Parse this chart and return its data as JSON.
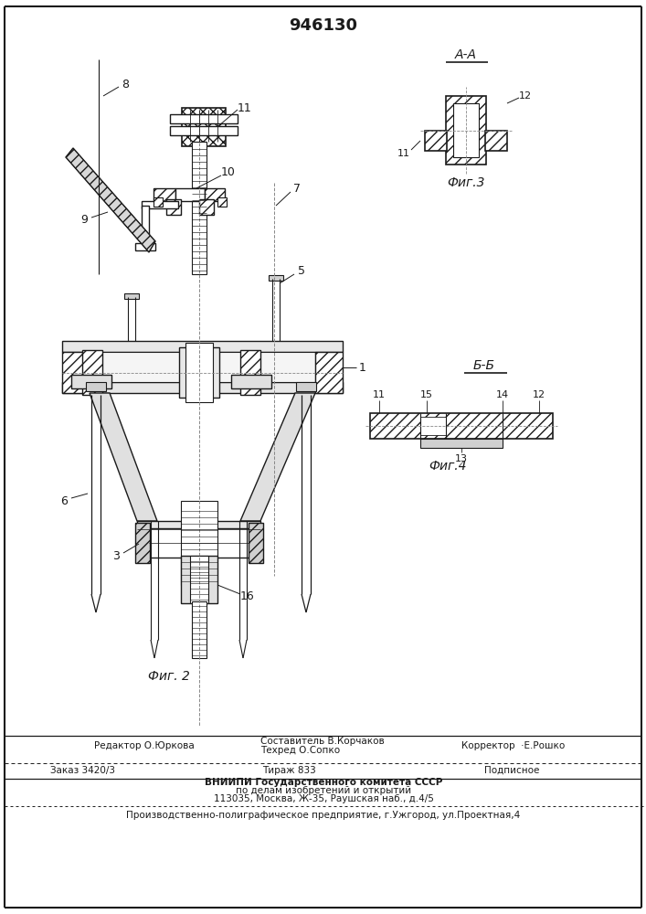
{
  "patent_number": "946130",
  "fig2_label": "Фиг. 2",
  "fig3_label": "Фиг.3",
  "fig4_label": "Фиг.4",
  "section_aa": "А-А",
  "section_bb": "Б-Б",
  "editor_line": "Редактор О.Юркова",
  "compositor_line1": "Составитель В.Корчаков",
  "compositor_line2": "Техред О.Сопко",
  "corrector_line": "Корректор  ·Е.Рошко",
  "order_line": "Заказ 3420/3",
  "tirazh_line": "Тираж 833",
  "podpisnoe_line": "Подписное",
  "vniiti_line1": "ВНИИПИ Государственного комитета СССР",
  "vniiti_line2": "по делам изобретений и открытий",
  "vniiti_line3": "113035, Москва, Ж-35, Раушская наб., д.4/5",
  "enterprise_line": "Производственно-полиграфическое предприятие, г.Ужгород, ул.Проектная,4",
  "bg_color": "#ffffff",
  "line_color": "#1a1a1a"
}
